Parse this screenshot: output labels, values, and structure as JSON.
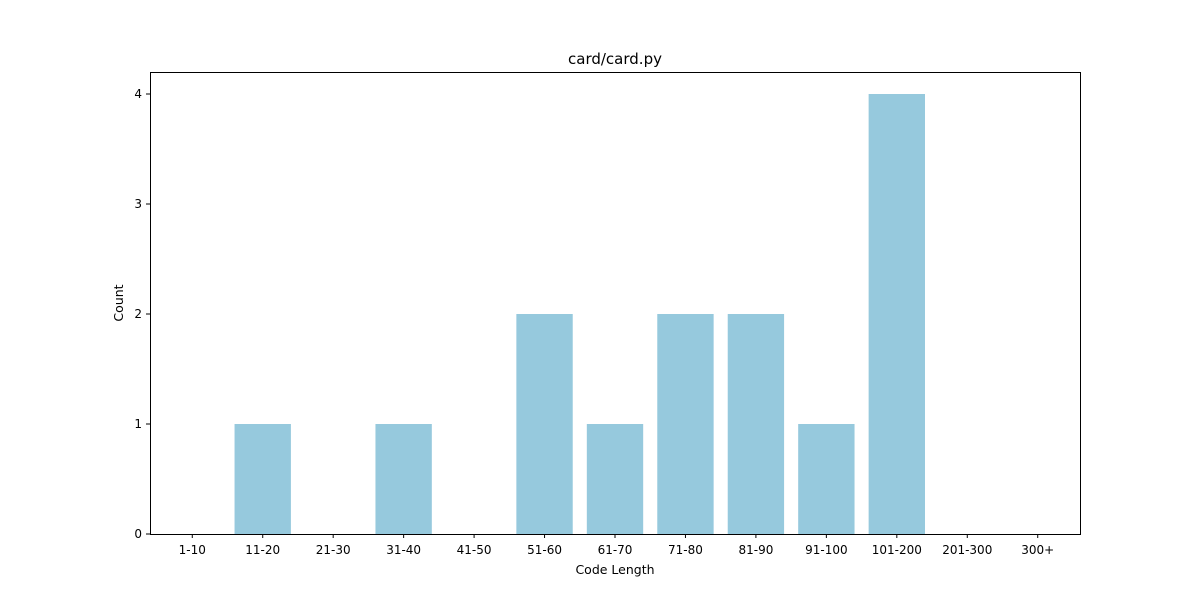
{
  "chart_data": {
    "type": "bar",
    "title": "card/card.py",
    "xlabel": "Code Length",
    "ylabel": "Count",
    "categories": [
      "1-10",
      "11-20",
      "21-30",
      "31-40",
      "41-50",
      "51-60",
      "61-70",
      "71-80",
      "81-90",
      "91-100",
      "101-200",
      "201-300",
      "300+"
    ],
    "values": [
      0,
      1,
      0,
      1,
      0,
      2,
      1,
      2,
      2,
      1,
      4,
      0,
      0
    ],
    "yticks": [
      0,
      1,
      2,
      3,
      4
    ],
    "ylim": [
      0,
      4.2
    ],
    "bar_color": "#96c9dd",
    "grid": false,
    "legend": "none"
  }
}
